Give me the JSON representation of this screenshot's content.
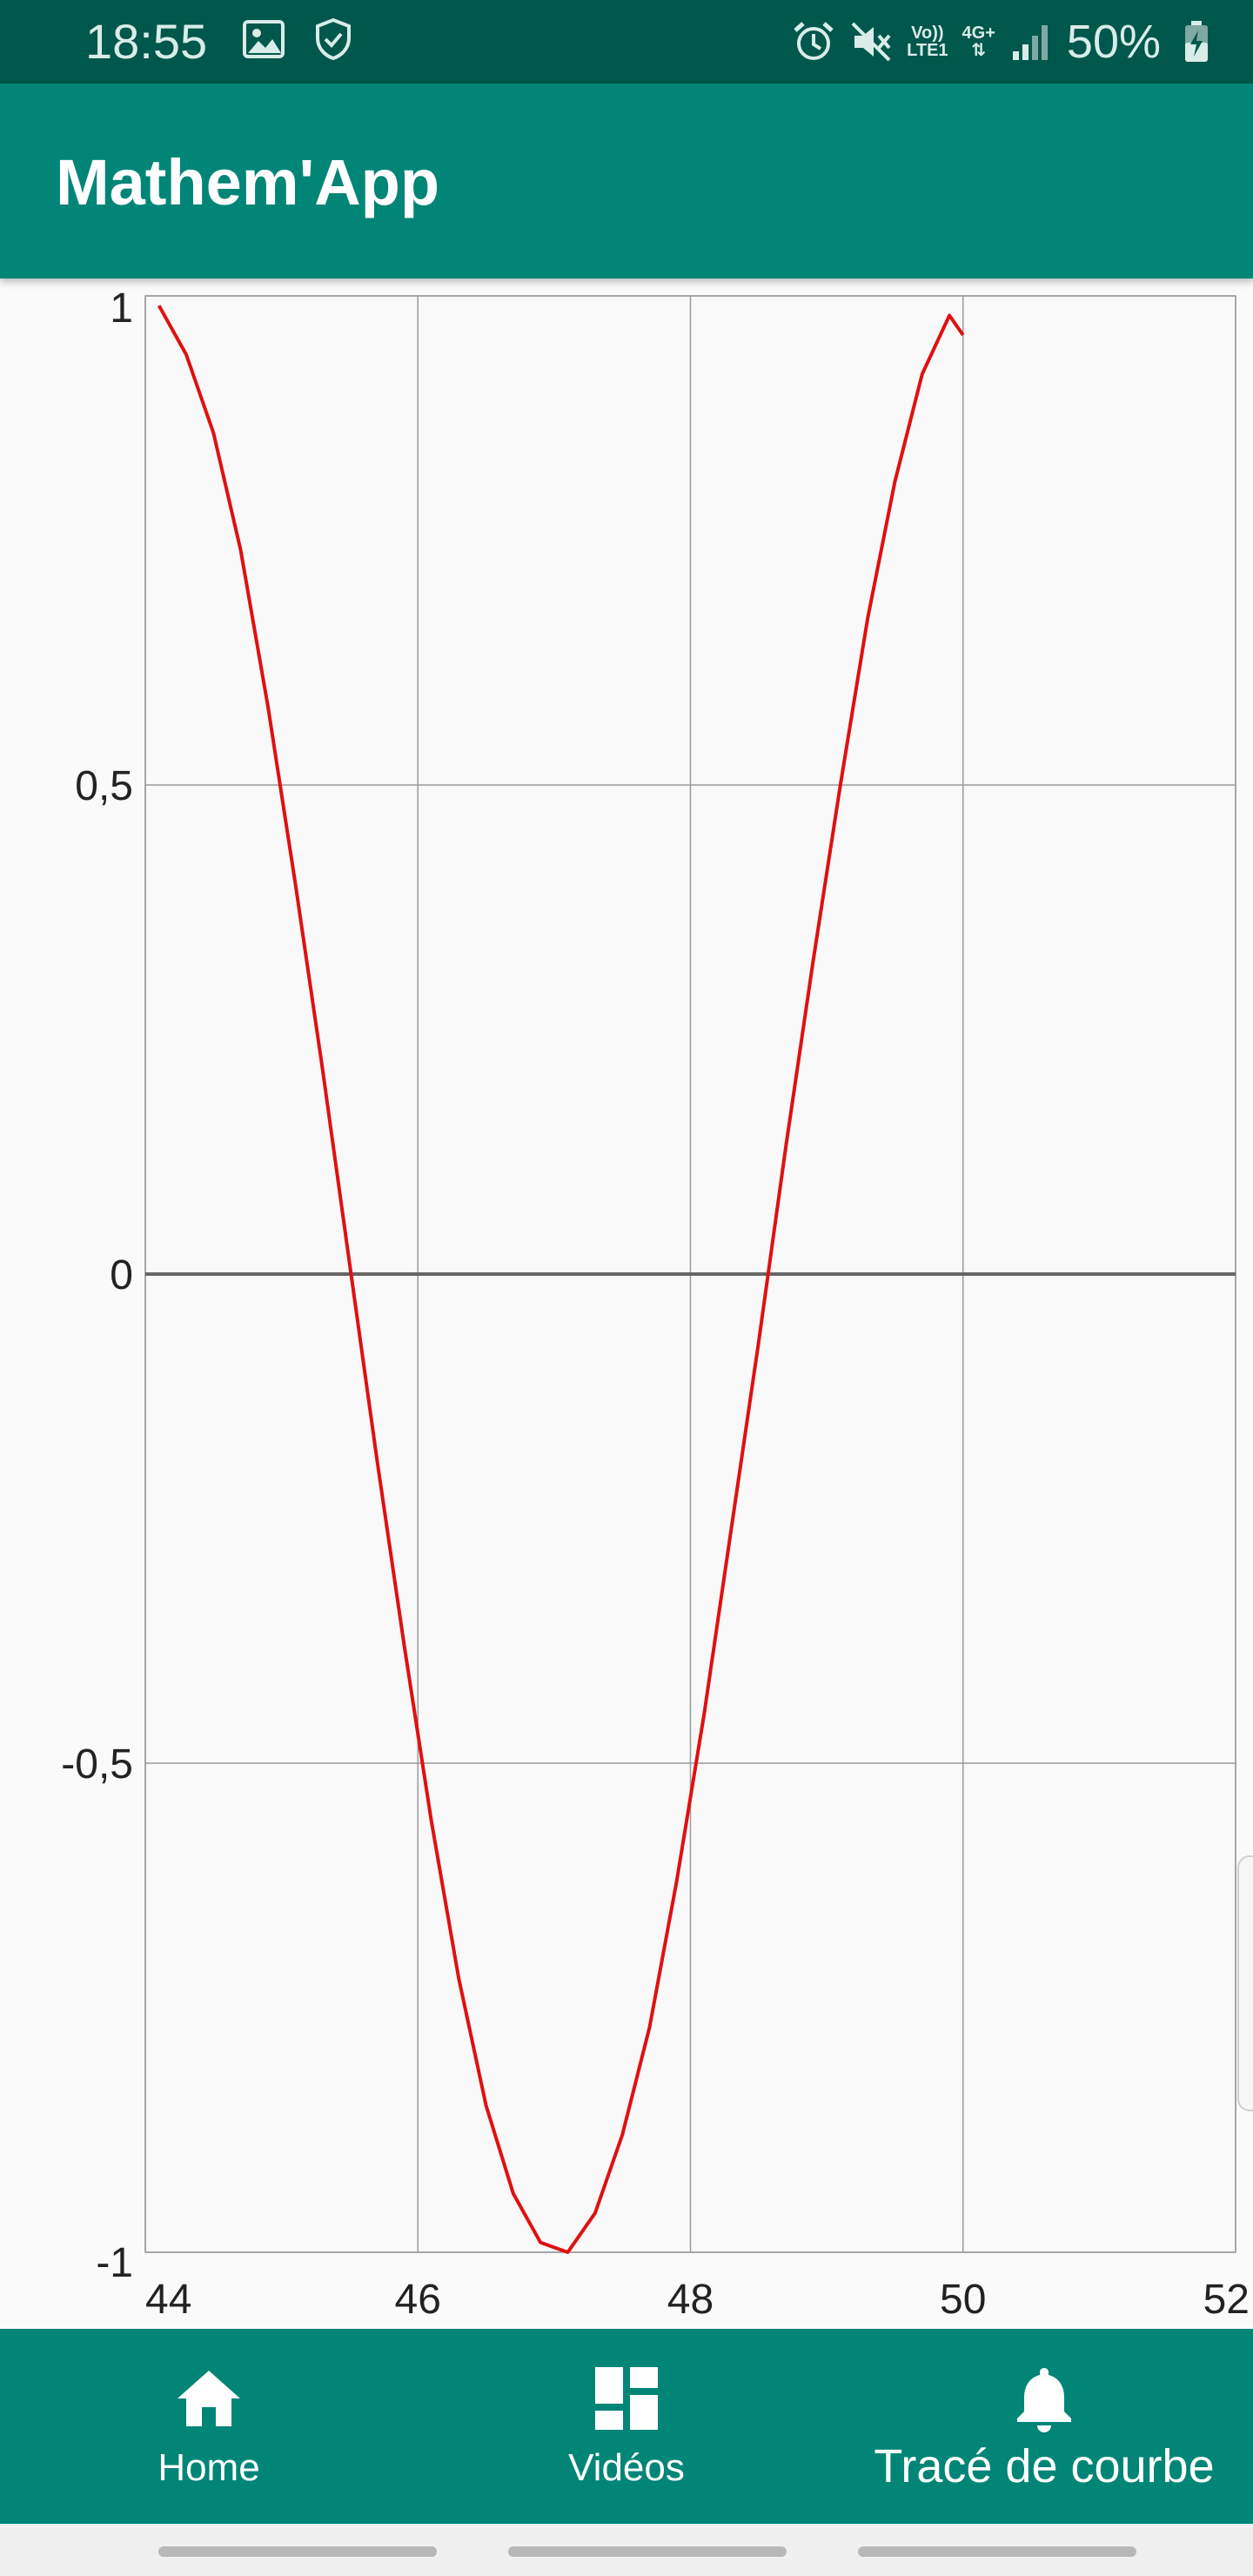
{
  "status_bar": {
    "time": "18:55",
    "battery_text": "50%",
    "network_top": "Vo))",
    "network_bottom": "LTE1",
    "network_type": "4G+",
    "icons": [
      "image-icon",
      "shield-check-icon",
      "alarm-icon",
      "mute-icon",
      "signal-icon",
      "battery-charging-icon"
    ]
  },
  "app_bar": {
    "title": "Mathem'App"
  },
  "chart_data": {
    "type": "line",
    "title": "",
    "xlabel": "",
    "ylabel": "",
    "xlim": [
      44,
      52
    ],
    "ylim": [
      -1,
      1
    ],
    "x_ticks": [
      44,
      46,
      48,
      50,
      52
    ],
    "x_tick_labels": [
      "44",
      "46",
      "48",
      "50",
      "52"
    ],
    "y_ticks": [
      -1,
      -0.5,
      0,
      0.5,
      1
    ],
    "y_tick_labels": [
      "-1",
      "-0,5",
      "0",
      "0,5",
      "1"
    ],
    "grid": true,
    "series": [
      {
        "color": "#e01010",
        "x": [
          44.1,
          44.3,
          44.5,
          44.7,
          44.9,
          45.1,
          45.3,
          45.5,
          45.7,
          45.9,
          46.1,
          46.3,
          46.5,
          46.7,
          46.9,
          47.1,
          47.3,
          47.5,
          47.7,
          47.9,
          48.1,
          48.3,
          48.5,
          48.7,
          48.9,
          49.1,
          49.3,
          49.5,
          49.7,
          49.9,
          50.0
        ],
        "y": [
          0.99,
          0.94,
          0.86,
          0.74,
          0.58,
          0.4,
          0.21,
          0.01,
          -0.19,
          -0.38,
          -0.56,
          -0.72,
          -0.85,
          -0.94,
          -0.99,
          -1.0,
          -0.96,
          -0.88,
          -0.77,
          -0.62,
          -0.45,
          -0.26,
          -0.07,
          0.13,
          0.32,
          0.5,
          0.67,
          0.81,
          0.92,
          0.98,
          0.96
        ]
      }
    ]
  },
  "bottom_nav": {
    "items": [
      {
        "label": "Home",
        "icon": "home-icon"
      },
      {
        "label": "Vidéos",
        "icon": "dashboard-icon"
      },
      {
        "label": "Tracé de courbe",
        "icon": "bell-icon"
      }
    ]
  }
}
